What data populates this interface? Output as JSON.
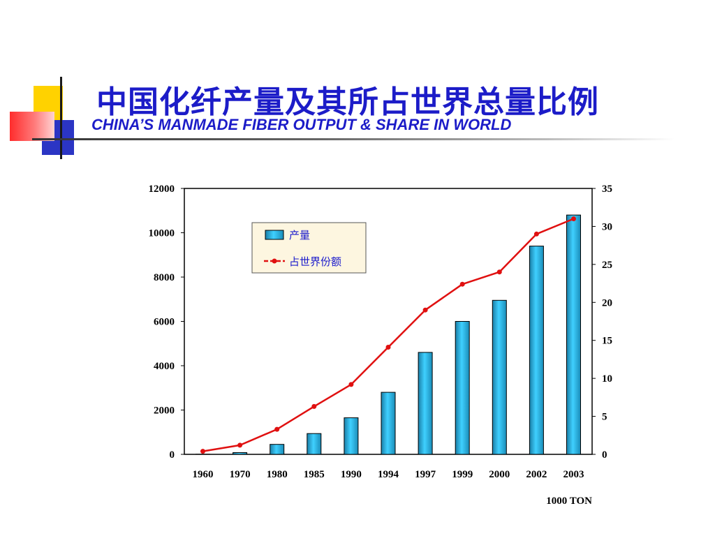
{
  "slide": {
    "title_cn": "中国化纤产量及其所占世界总量比例",
    "title_en": "CHINA’S MANMADE FIBER OUTPUT & SHARE IN WORLD"
  },
  "colors": {
    "title": "#1c1cc8",
    "bar": "#29b6e0",
    "line": "#e01010",
    "legend_bg": "#fdf6e0"
  },
  "chart_data": {
    "type": "bar",
    "categories": [
      "1960",
      "1970",
      "1980",
      "1985",
      "1990",
      "1994",
      "1997",
      "1999",
      "2000",
      "2002",
      "2003"
    ],
    "series": [
      {
        "name": "产量",
        "type": "bar",
        "axis": "left",
        "values": [
          5,
          80,
          450,
          940,
          1650,
          2800,
          4600,
          6000,
          6950,
          9400,
          10800
        ]
      },
      {
        "name": "占世界份额",
        "type": "line",
        "axis": "right",
        "values": [
          0.4,
          1.2,
          3.3,
          6.3,
          9.2,
          14.1,
          19.0,
          22.4,
          24.0,
          29.0,
          31.0
        ]
      }
    ],
    "y_left": {
      "ticks": [
        "0",
        "2000",
        "4000",
        "6000",
        "8000",
        "10000",
        "12000"
      ],
      "lim": [
        0,
        12000
      ]
    },
    "y_right": {
      "ticks": [
        "0",
        "5",
        "10",
        "15",
        "20",
        "25",
        "30",
        "35"
      ],
      "lim": [
        0,
        35
      ]
    },
    "unit_label": "1000 TON",
    "legend_position": "top-left",
    "grid": false
  }
}
